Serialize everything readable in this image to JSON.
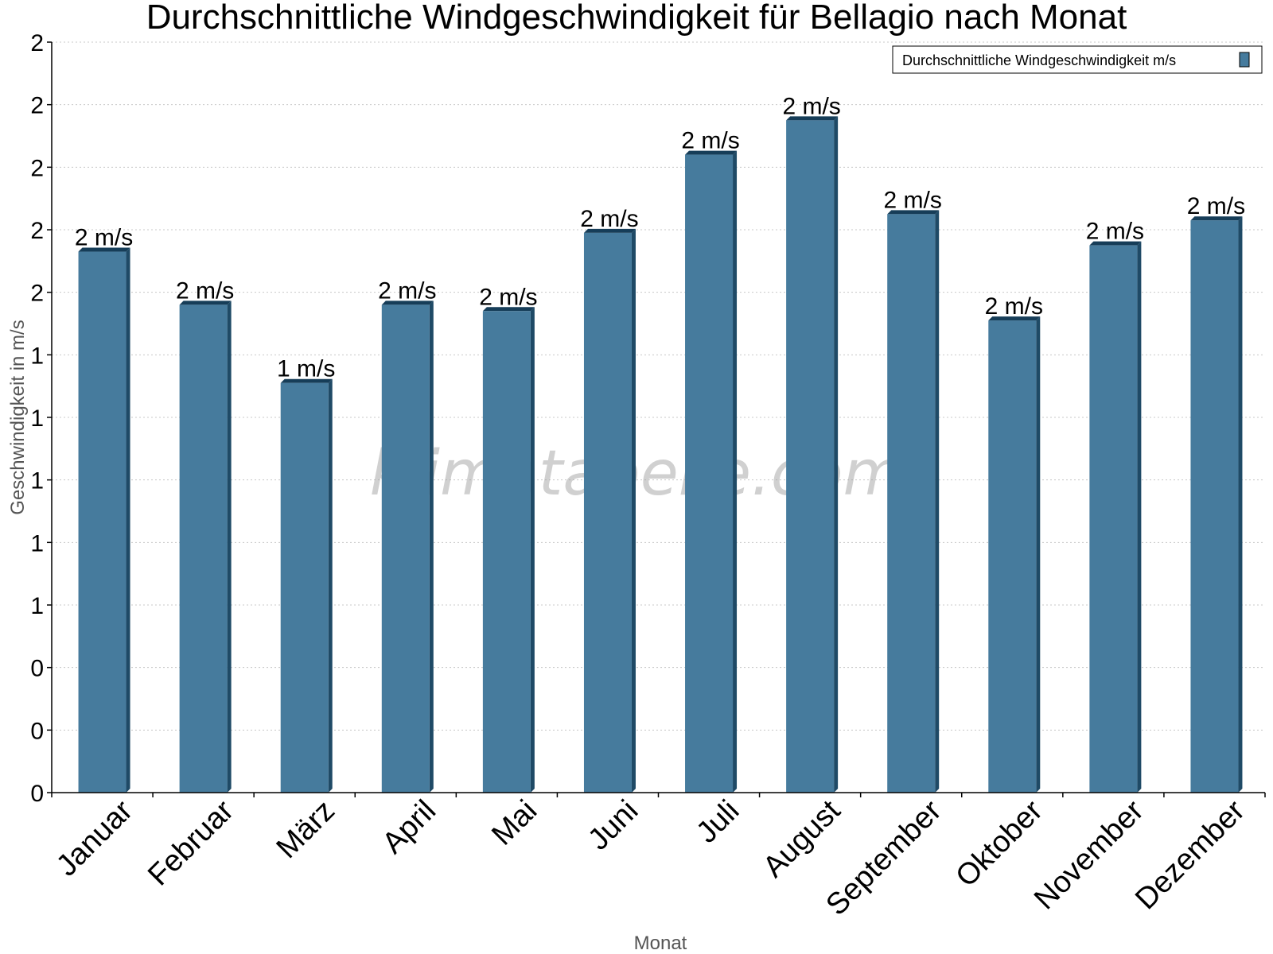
{
  "chart_data": {
    "type": "bar",
    "title": "Durchschnittliche Windgeschwindigkeit für Bellagio nach Monat",
    "xlabel": "Monat",
    "ylabel": "Geschwindigkeit in m/s",
    "categories": [
      "Januar",
      "Februar",
      "März",
      "April",
      "Mai",
      "Juni",
      "Juli",
      "August",
      "September",
      "Oktober",
      "November",
      "Dezember"
    ],
    "series": [
      {
        "name": "Durchschnittliche Windgeschwindigkeit m/s",
        "values": [
          1.73,
          1.56,
          1.31,
          1.56,
          1.54,
          1.79,
          2.04,
          2.15,
          1.85,
          1.51,
          1.75,
          1.83
        ]
      }
    ],
    "data_labels": [
      "2 m/s",
      "2 m/s",
      "1 m/s",
      "2 m/s",
      "2 m/s",
      "2 m/s",
      "2 m/s",
      "2 m/s",
      "2 m/s",
      "2 m/s",
      "2 m/s",
      "2 m/s"
    ],
    "yticks": [
      0,
      0.2,
      0.4,
      0.6,
      0.8,
      1.0,
      1.2,
      1.4,
      1.6,
      1.8,
      2.0,
      2.2,
      2.4
    ],
    "ytick_labels": [
      "0",
      "0",
      "0",
      "1",
      "1",
      "1",
      "1",
      "1",
      "2",
      "2",
      "2",
      "2",
      "2"
    ],
    "ylim": [
      0,
      2.4
    ],
    "grid": true,
    "legend_position": "top-right",
    "watermark": "klimatabelle.com",
    "colors": {
      "bar_front": "#467b9d",
      "bar_side": "#1f4a66",
      "bar_top": "#163d58",
      "grid": "#c8c8c8"
    }
  }
}
